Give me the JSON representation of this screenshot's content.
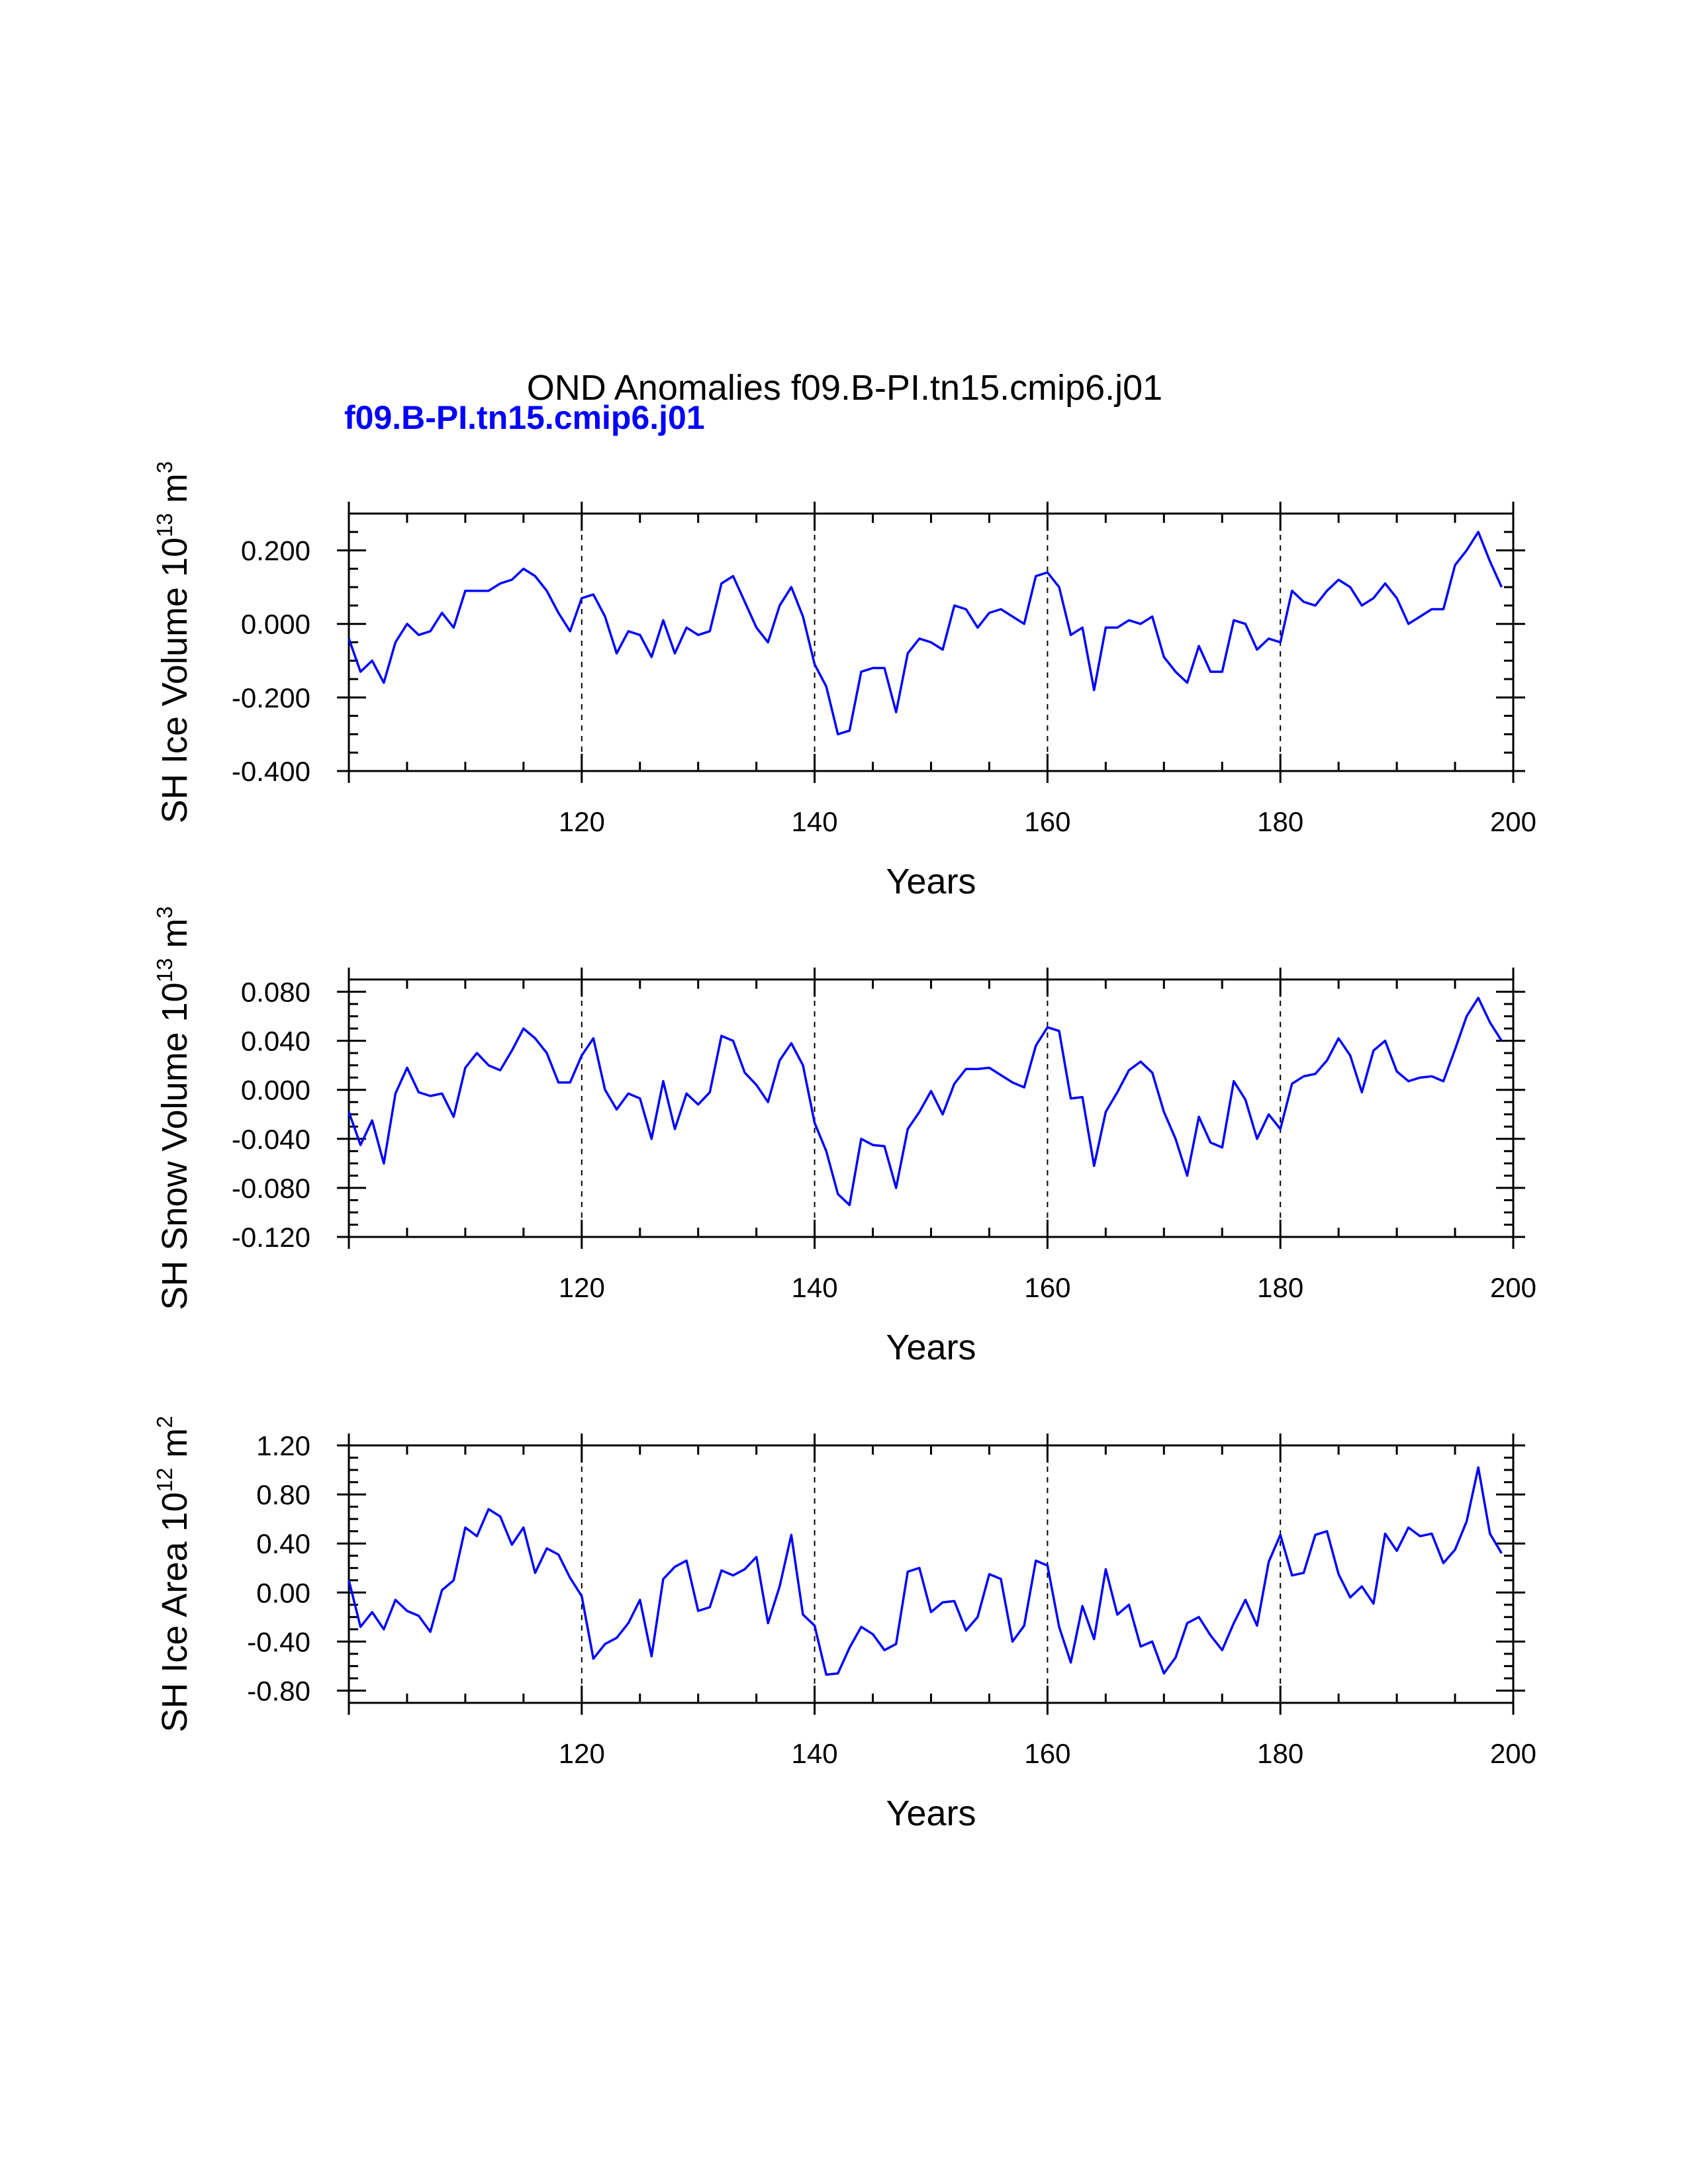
{
  "title": "OND Anomalies f09.B-PI.tn15.cmip6.j01",
  "subtitle": "f09.B-PI.tn15.cmip6.j01",
  "colors": {
    "series": "#0000ff",
    "axes": "#000000"
  },
  "chart_data": [
    {
      "type": "line",
      "ylabel_main": "SH Ice Volume 10",
      "ylabel_exp": "13",
      "ylabel_unit": " m",
      "ylabel_unit_exp": "3",
      "xlabel": "Years",
      "xlim": [
        100,
        200
      ],
      "ylim": [
        -0.4,
        0.3
      ],
      "x_ticks": [
        "120",
        "140",
        "160",
        "180",
        "200"
      ],
      "y_ticks": [
        "0.200",
        "0.000",
        "-0.200",
        "-0.400"
      ],
      "y_tick_values": [
        0.2,
        0.0,
        -0.2,
        -0.4
      ],
      "ref_lines_x": [
        120,
        140,
        160,
        180
      ],
      "series": [
        {
          "name": "",
          "x_start": 100,
          "values": [
            -0.04,
            -0.13,
            -0.1,
            -0.16,
            -0.05,
            0.0,
            -0.03,
            -0.02,
            0.03,
            -0.01,
            0.09,
            0.09,
            0.09,
            0.11,
            0.12,
            0.15,
            0.13,
            0.09,
            0.03,
            -0.02,
            0.07,
            0.08,
            0.02,
            -0.08,
            -0.02,
            -0.03,
            -0.09,
            0.01,
            -0.08,
            -0.01,
            -0.03,
            -0.02,
            0.11,
            0.13,
            0.06,
            -0.01,
            -0.05,
            0.05,
            0.1,
            0.02,
            -0.11,
            -0.17,
            -0.3,
            -0.29,
            -0.13,
            -0.12,
            -0.12,
            -0.24,
            -0.08,
            -0.04,
            -0.05,
            -0.07,
            0.05,
            0.04,
            -0.01,
            0.03,
            0.04,
            0.02,
            0.0,
            0.13,
            0.14,
            0.1,
            -0.03,
            -0.01,
            -0.18,
            -0.01,
            -0.01,
            0.01,
            0.0,
            0.02,
            -0.09,
            -0.13,
            -0.16,
            -0.06,
            -0.13,
            -0.13,
            0.01,
            0.0,
            -0.07,
            -0.04,
            -0.05,
            0.09,
            0.06,
            0.05,
            0.09,
            0.12,
            0.1,
            0.05,
            0.07,
            0.11,
            0.07,
            0.0,
            0.02,
            0.04,
            0.04,
            0.16,
            0.2,
            0.25,
            0.17,
            0.1
          ]
        }
      ]
    },
    {
      "type": "line",
      "ylabel_main": "SH Snow Volume 10",
      "ylabel_exp": "13",
      "ylabel_unit": " m",
      "ylabel_unit_exp": "3",
      "xlabel": "Years",
      "xlim": [
        100,
        200
      ],
      "ylim": [
        -0.12,
        0.09
      ],
      "x_ticks": [
        "120",
        "140",
        "160",
        "180",
        "200"
      ],
      "y_ticks": [
        "0.080",
        "0.040",
        "0.000",
        "-0.040",
        "-0.080",
        "-0.120"
      ],
      "y_tick_values": [
        0.08,
        0.04,
        0.0,
        -0.04,
        -0.08,
        -0.12
      ],
      "ref_lines_x": [
        120,
        140,
        160,
        180
      ],
      "series": [
        {
          "name": "",
          "x_start": 100,
          "values": [
            -0.018,
            -0.045,
            -0.025,
            -0.06,
            -0.003,
            0.018,
            -0.002,
            -0.005,
            -0.003,
            -0.022,
            0.018,
            0.03,
            0.02,
            0.016,
            0.032,
            0.05,
            0.042,
            0.03,
            0.006,
            0.006,
            0.028,
            0.042,
            0.0,
            -0.016,
            -0.003,
            -0.007,
            -0.04,
            0.007,
            -0.032,
            -0.003,
            -0.012,
            -0.002,
            0.044,
            0.04,
            0.014,
            0.004,
            -0.01,
            0.024,
            0.038,
            0.02,
            -0.027,
            -0.05,
            -0.085,
            -0.094,
            -0.04,
            -0.045,
            -0.046,
            -0.08,
            -0.032,
            -0.018,
            -0.001,
            -0.02,
            0.005,
            0.017,
            0.017,
            0.018,
            0.012,
            0.006,
            0.002,
            0.036,
            0.051,
            0.048,
            -0.007,
            -0.006,
            -0.062,
            -0.018,
            -0.002,
            0.016,
            0.023,
            0.014,
            -0.018,
            -0.04,
            -0.07,
            -0.022,
            -0.043,
            -0.047,
            0.007,
            -0.008,
            -0.04,
            -0.02,
            -0.032,
            0.005,
            0.011,
            0.013,
            0.024,
            0.042,
            0.028,
            -0.002,
            0.032,
            0.04,
            0.015,
            0.007,
            0.01,
            0.011,
            0.007,
            0.033,
            0.06,
            0.075,
            0.055,
            0.04
          ]
        }
      ]
    },
    {
      "type": "line",
      "ylabel_main": "SH Ice Area 10",
      "ylabel_exp": "12",
      "ylabel_unit": " m",
      "ylabel_unit_exp": "2",
      "xlabel": "Years",
      "xlim": [
        100,
        200
      ],
      "ylim": [
        -0.9,
        1.2
      ],
      "x_ticks": [
        "120",
        "140",
        "160",
        "180",
        "200"
      ],
      "y_ticks": [
        "1.20",
        "0.80",
        "0.40",
        "0.00",
        "-0.40",
        "-0.80"
      ],
      "y_tick_values": [
        1.2,
        0.8,
        0.4,
        0.0,
        -0.4,
        -0.8
      ],
      "ref_lines_x": [
        120,
        140,
        160,
        180
      ],
      "series": [
        {
          "name": "",
          "x_start": 100,
          "values": [
            0.1,
            -0.28,
            -0.16,
            -0.3,
            -0.06,
            -0.15,
            -0.19,
            -0.32,
            0.02,
            0.1,
            0.53,
            0.46,
            0.68,
            0.62,
            0.39,
            0.53,
            0.16,
            0.36,
            0.31,
            0.12,
            -0.03,
            -0.54,
            -0.42,
            -0.37,
            -0.25,
            -0.06,
            -0.52,
            0.11,
            0.21,
            0.26,
            -0.15,
            -0.12,
            0.18,
            0.14,
            0.19,
            0.29,
            -0.25,
            0.05,
            0.47,
            -0.18,
            -0.27,
            -0.67,
            -0.66,
            -0.45,
            -0.28,
            -0.34,
            -0.47,
            -0.42,
            0.17,
            0.2,
            -0.16,
            -0.08,
            -0.07,
            -0.31,
            -0.2,
            0.15,
            0.11,
            -0.4,
            -0.27,
            0.26,
            0.22,
            -0.28,
            -0.57,
            -0.11,
            -0.38,
            0.19,
            -0.18,
            -0.1,
            -0.44,
            -0.4,
            -0.66,
            -0.53,
            -0.25,
            -0.2,
            -0.35,
            -0.47,
            -0.25,
            -0.06,
            -0.27,
            0.25,
            0.47,
            0.14,
            0.16,
            0.47,
            0.5,
            0.15,
            -0.04,
            0.05,
            -0.09,
            0.48,
            0.34,
            0.53,
            0.46,
            0.48,
            0.24,
            0.35,
            0.58,
            1.02,
            0.48,
            0.32
          ]
        }
      ]
    }
  ]
}
